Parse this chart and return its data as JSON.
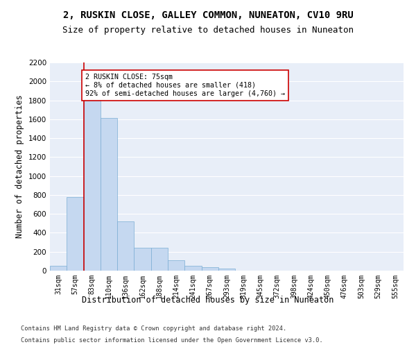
{
  "title": "2, RUSKIN CLOSE, GALLEY COMMON, NUNEATON, CV10 9RU",
  "subtitle": "Size of property relative to detached houses in Nuneaton",
  "xlabel": "Distribution of detached houses by size in Nuneaton",
  "ylabel": "Number of detached properties",
  "categories": [
    "31sqm",
    "57sqm",
    "83sqm",
    "110sqm",
    "136sqm",
    "162sqm",
    "188sqm",
    "214sqm",
    "241sqm",
    "267sqm",
    "293sqm",
    "319sqm",
    "345sqm",
    "372sqm",
    "398sqm",
    "424sqm",
    "450sqm",
    "476sqm",
    "503sqm",
    "529sqm",
    "555sqm"
  ],
  "values": [
    55,
    780,
    1820,
    1610,
    520,
    240,
    240,
    110,
    55,
    40,
    20,
    0,
    0,
    0,
    0,
    0,
    0,
    0,
    0,
    0,
    0
  ],
  "bar_color": "#c5d8f0",
  "bar_edge_color": "#7aadd4",
  "vline_color": "#cc0000",
  "annotation_text": "2 RUSKIN CLOSE: 75sqm\n← 8% of detached houses are smaller (418)\n92% of semi-detached houses are larger (4,760) →",
  "annotation_box_color": "#ffffff",
  "annotation_box_edge_color": "#cc0000",
  "ylim": [
    0,
    2200
  ],
  "yticks": [
    0,
    200,
    400,
    600,
    800,
    1000,
    1200,
    1400,
    1600,
    1800,
    2000,
    2200
  ],
  "background_color": "#ffffff",
  "plot_bg_color": "#e8eef8",
  "title_fontsize": 10,
  "subtitle_fontsize": 9,
  "xlabel_fontsize": 8.5,
  "ylabel_fontsize": 8.5,
  "footnote1": "Contains HM Land Registry data © Crown copyright and database right 2024.",
  "footnote2": "Contains public sector information licensed under the Open Government Licence v3.0."
}
